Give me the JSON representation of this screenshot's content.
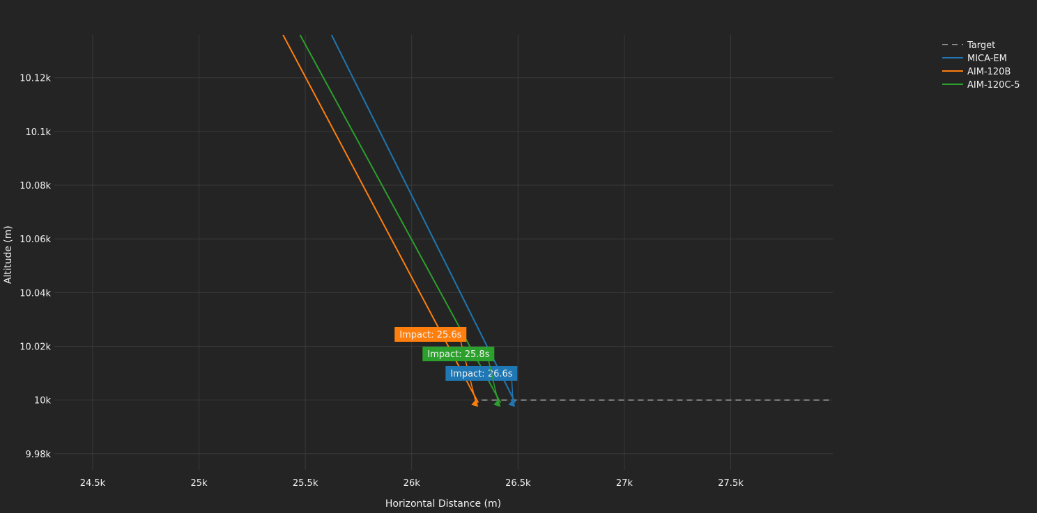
{
  "chart_data": {
    "type": "line",
    "title": "",
    "xlabel": "Horizontal Distance (m)",
    "ylabel": "Altitude (m)",
    "xlim": [
      24320,
      27980
    ],
    "ylim": [
      9974,
      10136
    ],
    "grid": true,
    "legend_position": "top-right",
    "x_ticks": [
      24500,
      25000,
      25500,
      26000,
      26500,
      27000,
      27500
    ],
    "x_tick_labels": [
      "24.5k",
      "25k",
      "25.5k",
      "26k",
      "26.5k",
      "27k",
      "27.5k"
    ],
    "y_ticks": [
      9980,
      10000,
      10020,
      10040,
      10060,
      10080,
      10100,
      10120
    ],
    "y_tick_labels": [
      "9.98k",
      "10k",
      "10.02k",
      "10.04k",
      "10.06k",
      "10.08k",
      "10.1k",
      "10.12k"
    ],
    "series": [
      {
        "name": "Target",
        "color": "#888888",
        "dash": true,
        "x": [
          26330,
          27980
        ],
        "y": [
          10000,
          10000
        ]
      },
      {
        "name": "MICA-EM",
        "color": "#1f77b4",
        "x": [
          25623,
          26487
        ],
        "y": [
          10136,
          9999
        ]
      },
      {
        "name": "AIM-120B",
        "color": "#ff7f0e",
        "x": [
          25395,
          26313
        ],
        "y": [
          10136,
          9999
        ]
      },
      {
        "name": "AIM-120C-5",
        "color": "#2ca02c",
        "x": [
          25475,
          26418
        ],
        "y": [
          10136,
          9999
        ]
      }
    ],
    "annotations": [
      {
        "series": "AIM-120B",
        "text": "Impact: 25.6s",
        "color": "#ff7f0e",
        "x": 26313,
        "y": 9999
      },
      {
        "series": "MICA-EM",
        "text": "Impact: 26.6s",
        "color": "#1f77b4",
        "x": 26487,
        "y": 9999
      },
      {
        "series": "AIM-120C-5",
        "text": "Impact: 25.8s",
        "color": "#2ca02c",
        "x": 26418,
        "y": 9999
      }
    ]
  }
}
